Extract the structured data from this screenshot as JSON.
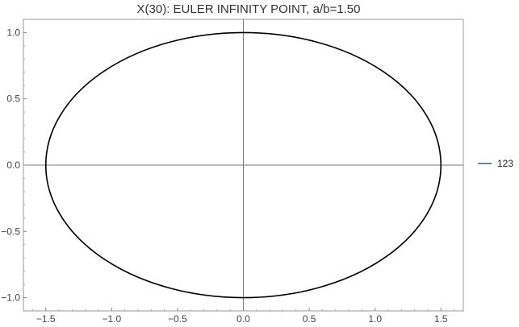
{
  "chart_data": {
    "type": "line",
    "title": "X(30): EULER INFINITY POINT, a/b=1.50",
    "xlabel": "",
    "ylabel": "",
    "xlim": [
      -1.67,
      1.67
    ],
    "ylim": [
      -1.1,
      1.1
    ],
    "x_ticks": [
      "−1.5",
      "−1.0",
      "−0.5",
      "0.0",
      "0.5",
      "1.0",
      "1.5"
    ],
    "x_tick_values": [
      -1.5,
      -1.0,
      -0.5,
      0.0,
      0.5,
      1.0,
      1.5
    ],
    "y_ticks": [
      "−1.0",
      "−0.5",
      "0.0",
      "0.5",
      "1.0"
    ],
    "y_tick_values": [
      -1.0,
      -0.5,
      0.0,
      0.5,
      1.0
    ],
    "axes_through_origin": true,
    "grid": false,
    "legend_position": "right",
    "series": [
      {
        "name": "123",
        "shape": "ellipse",
        "center": [
          0,
          0
        ],
        "semi_axis_x": 1.5,
        "semi_axis_y": 1.0,
        "color": "#000000"
      }
    ],
    "legend_color": "#2e5b9a"
  }
}
